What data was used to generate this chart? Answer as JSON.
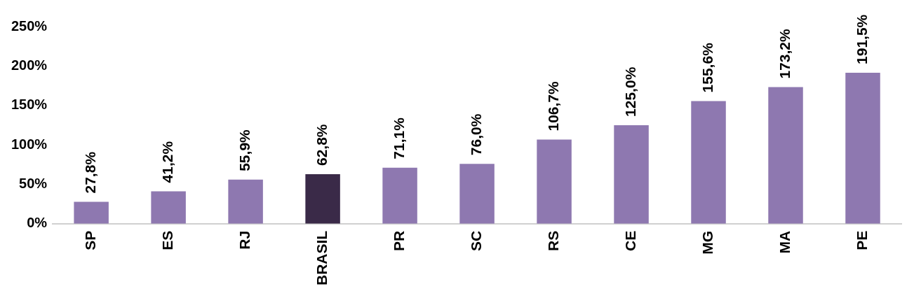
{
  "chart_data": {
    "type": "bar",
    "categories": [
      "SP",
      "ES",
      "RJ",
      "BRASIL",
      "PR",
      "SC",
      "RS",
      "CE",
      "MG",
      "MA",
      "PE"
    ],
    "values": [
      27.8,
      41.2,
      55.9,
      62.8,
      71.1,
      76.0,
      106.7,
      125.0,
      155.6,
      173.2,
      191.5
    ],
    "colors": [
      "#8e78b0",
      "#8e78b0",
      "#8e78b0",
      "#3a2a48",
      "#8e78b0",
      "#8e78b0",
      "#8e78b0",
      "#8e78b0",
      "#8e78b0",
      "#8e78b0",
      "#8e78b0"
    ],
    "value_labels": [
      "27,8%",
      "41,2%",
      "55,9%",
      "62,8%",
      "71,1%",
      "76,0%",
      "106,7%",
      "125,0%",
      "155,6%",
      "173,2%",
      "191,5%"
    ],
    "ylim": [
      0,
      250
    ],
    "yticks": [
      {
        "value": 0,
        "label": "0%"
      },
      {
        "value": 50,
        "label": "50%"
      },
      {
        "value": 100,
        "label": "100%"
      },
      {
        "value": 150,
        "label": "150%"
      },
      {
        "value": 200,
        "label": "200%"
      },
      {
        "value": 250,
        "label": "250%"
      }
    ],
    "grid": false,
    "legend": false
  }
}
